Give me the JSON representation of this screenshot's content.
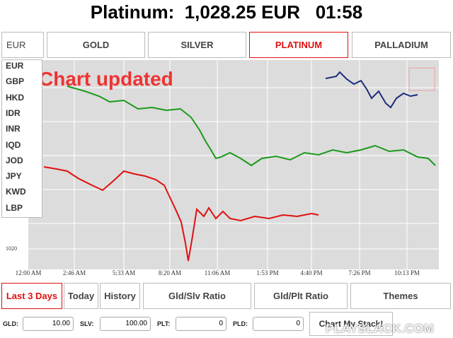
{
  "header": {
    "title": "Platinum:  1,028.25 EUR   01:58"
  },
  "tabs": {
    "currency": "EUR",
    "metals": [
      "GOLD",
      "SILVER",
      "PLATINUM",
      "PALLADIUM"
    ]
  },
  "dropdown": {
    "items": [
      "EUR",
      "GBP",
      "HKD",
      "IDR",
      "INR",
      "IQD",
      "JOD",
      "JPY",
      "KWD",
      "LBP"
    ]
  },
  "chart": {
    "notice": "Chart updated",
    "y_label": "1020",
    "x_labels": [
      "12:00 AM",
      "2:46 AM",
      "5:33 AM",
      "8:20 AM",
      "11:06 AM",
      "1:53 PM",
      "4:40 PM",
      "7:26 PM",
      "10:13 PM"
    ]
  },
  "buttons": [
    "Last 3 Days",
    "Today",
    "History",
    "Gld/Slv Ratio",
    "Gld/Plt Ratio",
    "Themes"
  ],
  "inputs": [
    {
      "label": "GLD:",
      "value": "10.00"
    },
    {
      "label": "SLV:",
      "value": "100.00"
    },
    {
      "label": "PLT:",
      "value": "0"
    },
    {
      "label": "PLD:",
      "value": "0"
    }
  ],
  "action_button": "Chart My Stack!",
  "watermark": "PLAYSLACK.COM"
}
